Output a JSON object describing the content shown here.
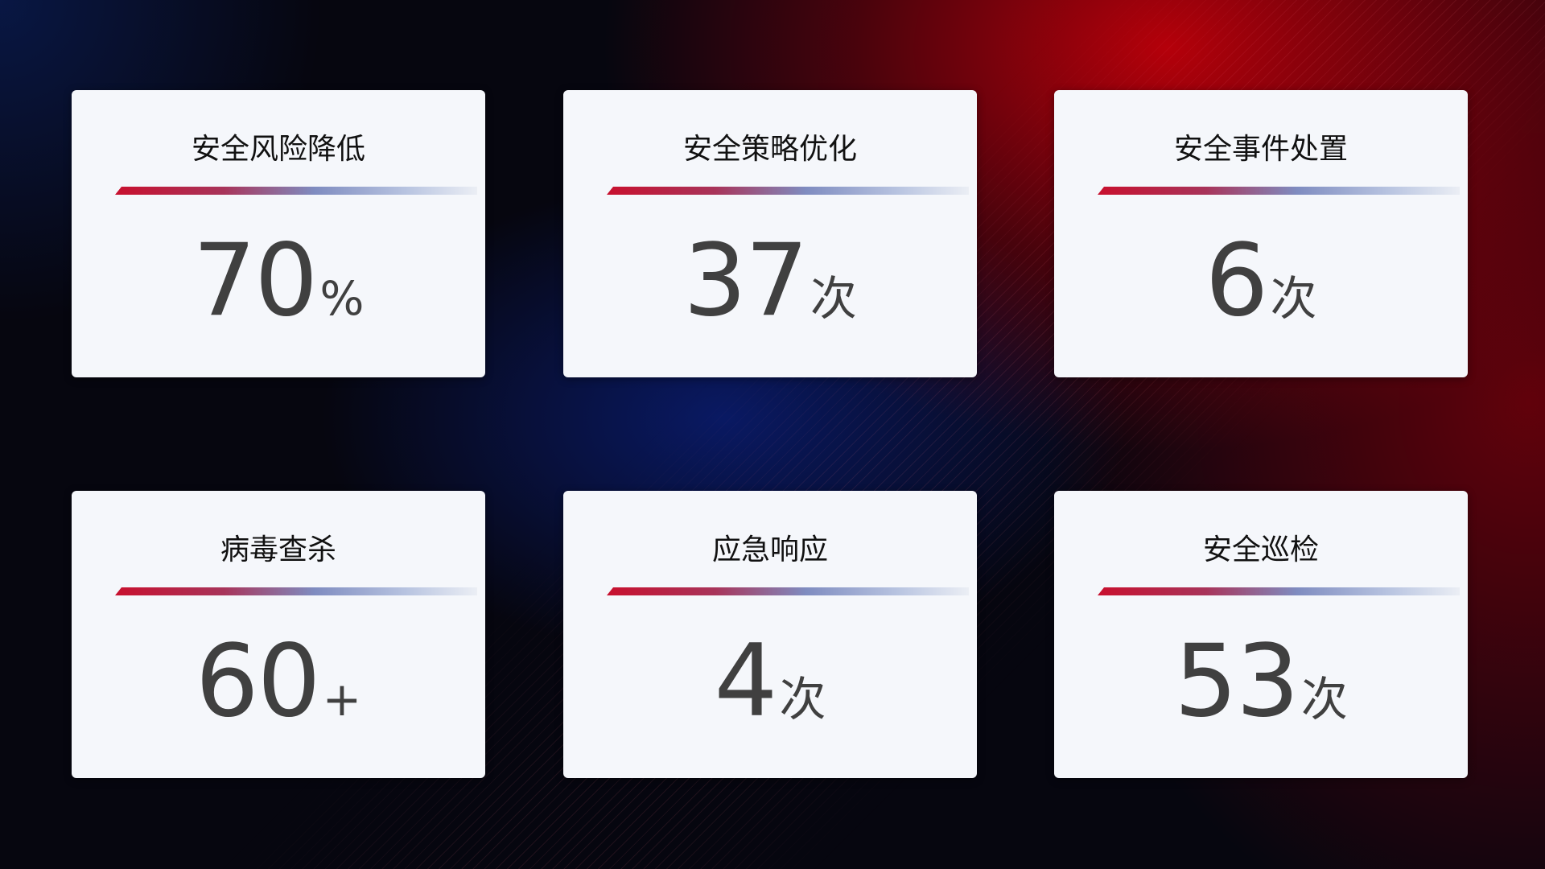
{
  "cards": [
    {
      "title": "安全风险降低",
      "value": "70",
      "unit": "%"
    },
    {
      "title": "安全策略优化",
      "value": "37",
      "unit": "次"
    },
    {
      "title": "安全事件处置",
      "value": "6",
      "unit": "次"
    },
    {
      "title": "病毒查杀",
      "value": "60",
      "unit": "+"
    },
    {
      "title": "应急响应",
      "value": "4",
      "unit": "次"
    },
    {
      "title": "安全巡检",
      "value": "53",
      "unit": "次"
    }
  ],
  "colors": {
    "accent_red": "#c8102e",
    "accent_blue": "#7f8cc0",
    "value_text": "#404040"
  }
}
